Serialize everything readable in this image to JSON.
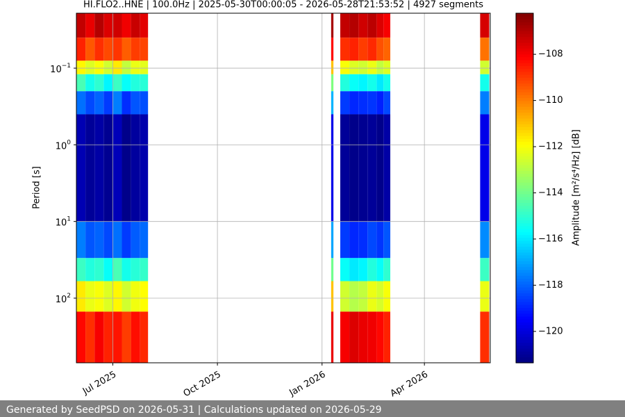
{
  "chart_data": {
    "type": "heatmap",
    "title": "HI.FLO2..HNE | 100.0Hz | 2025-05-30T00:00:05 - 2026-05-28T21:53:52 | 4927 segments",
    "y_label": "Period [s]",
    "colorbar_label": "Amplitude [m²/s⁴/Hz] [dB]",
    "colormap": "jet",
    "log_y": true,
    "y_inverted": true,
    "grid": true,
    "xlim": [
      "2025-05-30T00:00:05",
      "2026-05-28T21:53:52"
    ],
    "xticks": [
      {
        "value": "2025-07-01",
        "label": "Jul 2025"
      },
      {
        "value": "2025-10-01",
        "label": "Oct 2025"
      },
      {
        "value": "2026-01-01",
        "label": "Jan 2026"
      },
      {
        "value": "2026-04-01",
        "label": "Apr 2026"
      }
    ],
    "ylim": [
      0.0192,
      697
    ],
    "yticks": [
      {
        "value": 0.1,
        "label": "10",
        "exponent": "−1"
      },
      {
        "value": 1,
        "label": "10",
        "exponent": "0"
      },
      {
        "value": 10,
        "label": "10",
        "exponent": "1"
      },
      {
        "value": 100,
        "label": "10",
        "exponent": "2"
      }
    ],
    "clim": [
      -121.36,
      -106.22
    ],
    "cticks": [
      {
        "value": -108,
        "label": "−108"
      },
      {
        "value": -110,
        "label": "−110"
      },
      {
        "value": -112,
        "label": "−112"
      },
      {
        "value": -114,
        "label": "−114"
      },
      {
        "value": -116,
        "label": "−116"
      },
      {
        "value": -118,
        "label": "−118"
      },
      {
        "value": -120,
        "label": "−120"
      }
    ],
    "x": [
      "2025-05-30",
      "2025-06-07",
      "2025-06-15",
      "2025-06-23",
      "2025-07-01",
      "2025-07-09",
      "2025-07-17",
      "2025-07-25",
      "2026-01-09",
      "2026-01-17",
      "2026-01-25",
      "2026-02-02",
      "2026-02-10",
      "2026-02-18",
      "2026-02-24",
      "2026-05-20"
    ],
    "x_end": [
      "2025-06-07",
      "2025-06-15",
      "2025-06-23",
      "2025-07-01",
      "2025-07-09",
      "2025-07-17",
      "2025-07-25",
      "2025-08-01",
      "2026-01-11",
      "2026-01-25",
      "2026-02-02",
      "2026-02-10",
      "2026-02-18",
      "2026-02-24",
      "2026-03-02",
      "2026-05-28"
    ],
    "period_bins": [
      0.0192,
      0.04,
      0.08,
      0.12,
      0.2,
      0.4,
      10,
      30,
      60,
      150,
      697
    ],
    "values": [
      [
        -107.2,
        -108.6,
        -111.8,
        -114.6,
        -117.8,
        -120.6,
        -117.6,
        -114.8,
        -111.6,
        -108.2
      ],
      [
        -107.8,
        -109.4,
        -112.4,
        -115.4,
        -118.4,
        -121.0,
        -118.2,
        -115.2,
        -112.2,
        -108.8
      ],
      [
        -107.0,
        -108.8,
        -112.0,
        -115.0,
        -118.0,
        -120.8,
        -118.0,
        -115.0,
        -112.0,
        -108.0
      ],
      [
        -107.6,
        -109.2,
        -112.6,
        -115.8,
        -118.6,
        -121.1,
        -118.4,
        -115.6,
        -112.4,
        -108.6
      ],
      [
        -107.4,
        -108.9,
        -111.6,
        -114.8,
        -117.6,
        -120.5,
        -117.8,
        -114.6,
        -111.8,
        -108.4
      ],
      [
        -107.9,
        -109.5,
        -112.8,
        -115.6,
        -118.8,
        -121.2,
        -118.6,
        -115.4,
        -112.6,
        -109.0
      ],
      [
        -107.3,
        -109.0,
        -112.2,
        -115.2,
        -118.2,
        -120.9,
        -118.1,
        -115.1,
        -112.1,
        -108.3
      ],
      [
        -107.7,
        -109.1,
        -112.3,
        -115.1,
        -118.3,
        -120.7,
        -117.9,
        -114.9,
        -111.9,
        -108.7
      ],
      [
        -106.8,
        -108.2,
        -111.0,
        -113.8,
        -116.8,
        -119.8,
        -117.0,
        -114.0,
        -111.0,
        -107.8
      ],
      [
        -107.2,
        -108.8,
        -112.0,
        -115.2,
        -118.6,
        -121.0,
        -118.6,
        -115.6,
        -112.6,
        -108.0
      ],
      [
        -107.0,
        -108.6,
        -112.4,
        -115.6,
        -118.9,
        -121.2,
        -118.9,
        -116.0,
        -113.0,
        -107.6
      ],
      [
        -107.4,
        -109.0,
        -112.6,
        -115.8,
        -118.8,
        -121.1,
        -118.8,
        -115.8,
        -112.8,
        -107.8
      ],
      [
        -107.1,
        -108.7,
        -112.2,
        -115.4,
        -118.7,
        -121.0,
        -118.4,
        -115.2,
        -112.2,
        -107.9
      ],
      [
        -107.6,
        -109.3,
        -112.8,
        -116.0,
        -119.0,
        -121.2,
        -118.7,
        -115.6,
        -112.5,
        -108.2
      ],
      [
        -108.0,
        -109.6,
        -112.4,
        -115.4,
        -118.4,
        -120.8,
        -118.2,
        -115.0,
        -112.0,
        -108.6
      ],
      [
        -107.5,
        -109.8,
        -112.6,
        -115.4,
        -117.6,
        -119.8,
        -117.4,
        -114.8,
        -112.2,
        -108.8
      ]
    ]
  },
  "footer": {
    "text": "Generated by SeedPSD on 2026-05-31 | Calculations updated on 2026-05-29"
  }
}
